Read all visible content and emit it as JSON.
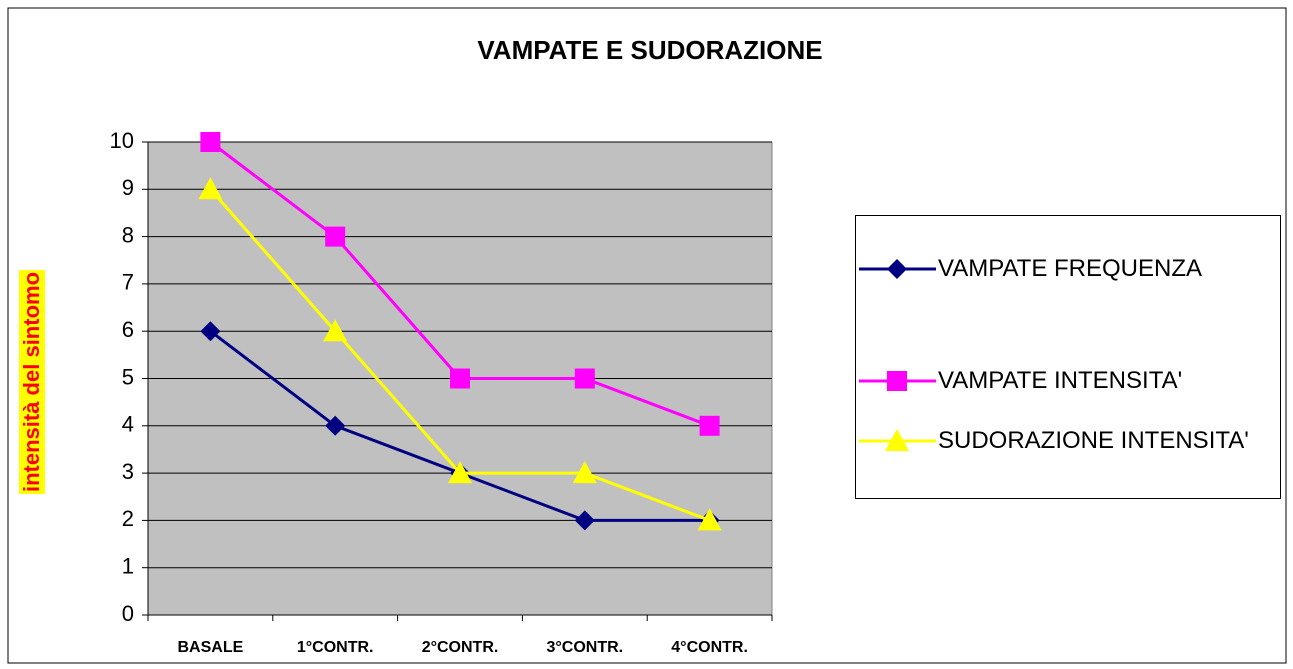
{
  "chart_data": {
    "type": "line",
    "title": "VAMPATE E SUDORAZIONE",
    "y_label": "intensità del sintomo",
    "categories": [
      "BASALE",
      "1°CONTR.",
      "2°CONTR.",
      "3°CONTR.",
      "4°CONTR."
    ],
    "series": [
      {
        "name": "VAMPATE FREQUENZA",
        "color": "#000080",
        "marker": "diamond",
        "values": [
          6,
          4,
          3,
          2,
          2
        ]
      },
      {
        "name": "VAMPATE INTENSITA'",
        "color": "#ff00ff",
        "marker": "square",
        "values": [
          10,
          8,
          5,
          5,
          4
        ]
      },
      {
        "name": "SUDORAZIONE INTENSITA'",
        "color": "#ffff00",
        "marker": "triangle",
        "values": [
          9,
          6,
          3,
          3,
          2
        ]
      }
    ],
    "ylim": [
      0,
      10
    ],
    "yticks": [
      0,
      1,
      2,
      3,
      4,
      5,
      6,
      7,
      8,
      9,
      10
    ],
    "grid": true,
    "legend": "right"
  }
}
